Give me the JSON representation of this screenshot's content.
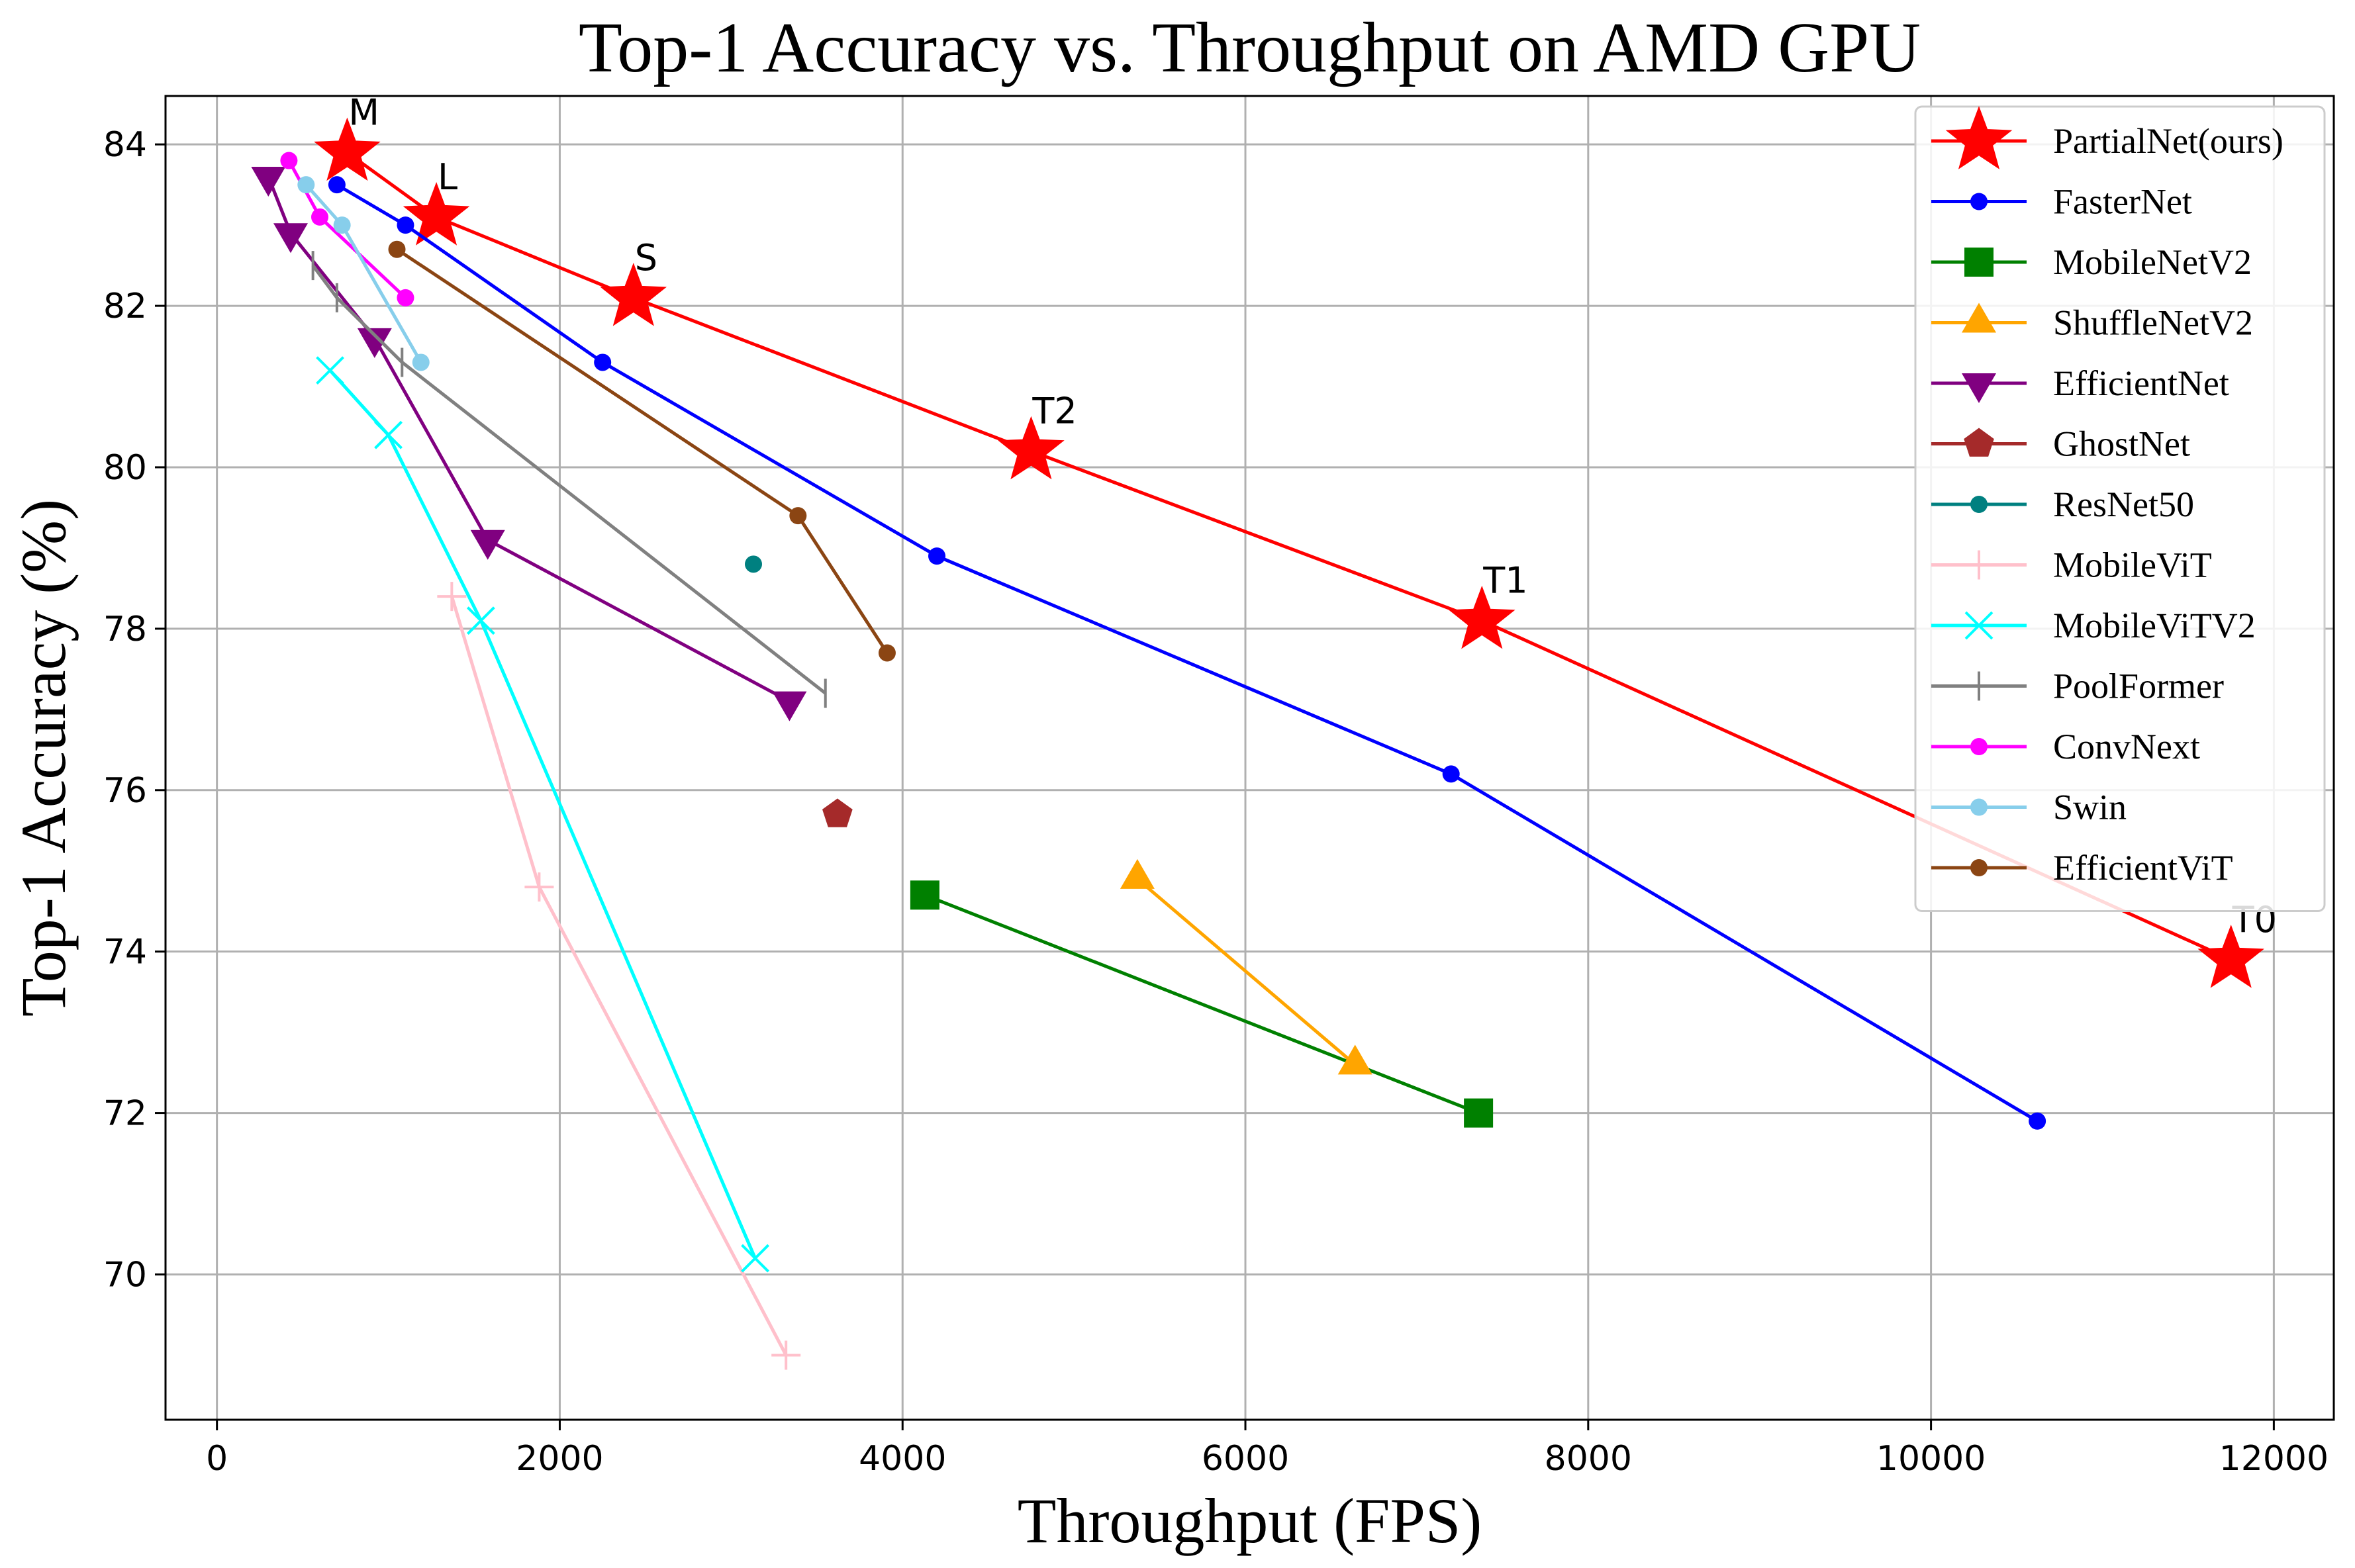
{
  "chart_data": {
    "type": "line",
    "title": "Top-1 Accuracy vs. Throughput on AMD GPU",
    "xlabel": "Throughput (FPS)",
    "ylabel": "Top-1 Accuracy (%)",
    "xlim": [
      -300,
      12350
    ],
    "ylim": [
      68.2,
      84.6
    ],
    "xticks": [
      0,
      2000,
      4000,
      6000,
      8000,
      10000,
      12000
    ],
    "yticks": [
      70,
      72,
      74,
      76,
      78,
      80,
      82,
      84
    ],
    "grid": true,
    "legend_position": "top-right",
    "series": [
      {
        "name": "PartialNet(ours)",
        "color": "#ff0000",
        "marker": "star",
        "x": [
          760,
          1280,
          2430,
          4750,
          7380,
          11750
        ],
        "y": [
          83.9,
          83.1,
          82.1,
          80.2,
          78.1,
          73.9
        ],
        "labels": [
          "M",
          "L",
          "S",
          "T2",
          "T1",
          "T0"
        ]
      },
      {
        "name": "FasterNet",
        "color": "#0000ff",
        "marker": "dot",
        "x": [
          700,
          1100,
          2250,
          4200,
          7200,
          10620
        ],
        "y": [
          83.5,
          83.0,
          81.3,
          78.9,
          76.2,
          71.9
        ]
      },
      {
        "name": "MobileNetV2",
        "color": "#008000",
        "marker": "square",
        "x": [
          4130,
          7360
        ],
        "y": [
          74.7,
          72.0
        ]
      },
      {
        "name": "ShuffleNetV2",
        "color": "#ffa500",
        "marker": "triangle-up",
        "x": [
          5370,
          6640
        ],
        "y": [
          74.9,
          72.6
        ]
      },
      {
        "name": "EfficientNet",
        "color": "#800080",
        "marker": "triangle-down",
        "x": [
          300,
          430,
          920,
          1580,
          3340
        ],
        "y": [
          83.6,
          82.9,
          81.6,
          79.1,
          77.1
        ]
      },
      {
        "name": "GhostNet",
        "color": "#a52a2a",
        "marker": "pentagon",
        "x": [
          3620
        ],
        "y": [
          75.7
        ]
      },
      {
        "name": "ResNet50",
        "color": "#008080",
        "marker": "dot",
        "x": [
          3130
        ],
        "y": [
          78.8
        ]
      },
      {
        "name": "MobileViT",
        "color": "#ffc0cb",
        "marker": "plus",
        "x": [
          1370,
          1880,
          3320
        ],
        "y": [
          78.4,
          74.8,
          69.0
        ]
      },
      {
        "name": "MobileViTV2",
        "color": "#00ffff",
        "marker": "x",
        "x": [
          660,
          1000,
          1540,
          3140
        ],
        "y": [
          81.2,
          80.4,
          78.1,
          70.2
        ]
      },
      {
        "name": "PoolFormer",
        "color": "#808080",
        "marker": "vline",
        "x": [
          560,
          700,
          1080,
          3550
        ],
        "y": [
          82.5,
          82.1,
          81.3,
          77.2
        ]
      },
      {
        "name": "ConvNext",
        "color": "#ff00ff",
        "marker": "dot",
        "x": [
          420,
          600,
          1100
        ],
        "y": [
          83.8,
          83.1,
          82.1
        ]
      },
      {
        "name": "Swin",
        "color": "#87ceeb",
        "marker": "dot",
        "x": [
          520,
          730,
          1190
        ],
        "y": [
          83.5,
          83.0,
          81.3
        ]
      },
      {
        "name": "EfficientViT",
        "color": "#8b4513",
        "marker": "dot",
        "x": [
          1050,
          3390,
          3910
        ],
        "y": [
          82.7,
          79.4,
          77.7
        ]
      }
    ]
  }
}
